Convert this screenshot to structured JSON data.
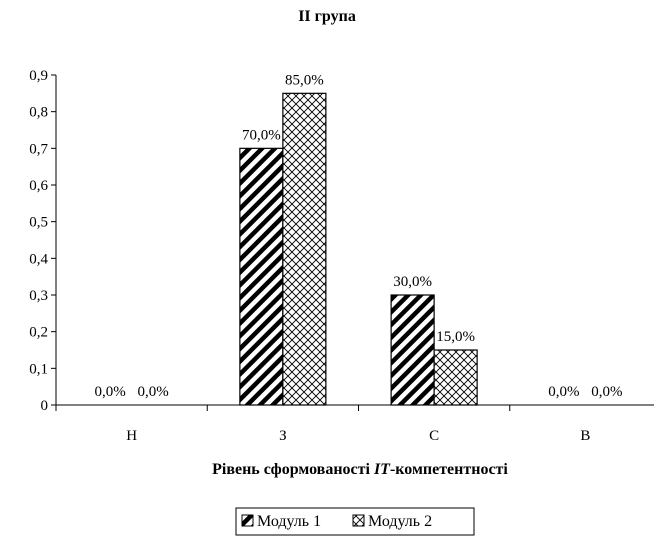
{
  "chart_data": {
    "type": "bar",
    "title": "ІІ група",
    "categories": [
      "Н",
      "З",
      "С",
      "В"
    ],
    "series": [
      {
        "name": "Модуль 1",
        "values": [
          0.0,
          0.7,
          0.3,
          0.0
        ],
        "labels": [
          "0,0%",
          "70,0%",
          "30,0%",
          "0,0%"
        ],
        "pattern": "diagonal-stripes"
      },
      {
        "name": "Модуль 2",
        "values": [
          0.0,
          0.85,
          0.15,
          0.0
        ],
        "labels": [
          "0,0%",
          "85,0%",
          "15,0%",
          "0,0%"
        ],
        "pattern": "crosshatch"
      }
    ],
    "yticks": [
      "0",
      "0,1",
      "0,2",
      "0,3",
      "0,4",
      "0,5",
      "0,6",
      "0,7",
      "0,8",
      "0,9"
    ],
    "ylim": [
      0,
      0.9
    ],
    "xlabel_pre": "Рівень сформованості ",
    "xlabel_it": "IT",
    "xlabel_post": "-компетентності",
    "grid": false,
    "legend": "bottom"
  }
}
